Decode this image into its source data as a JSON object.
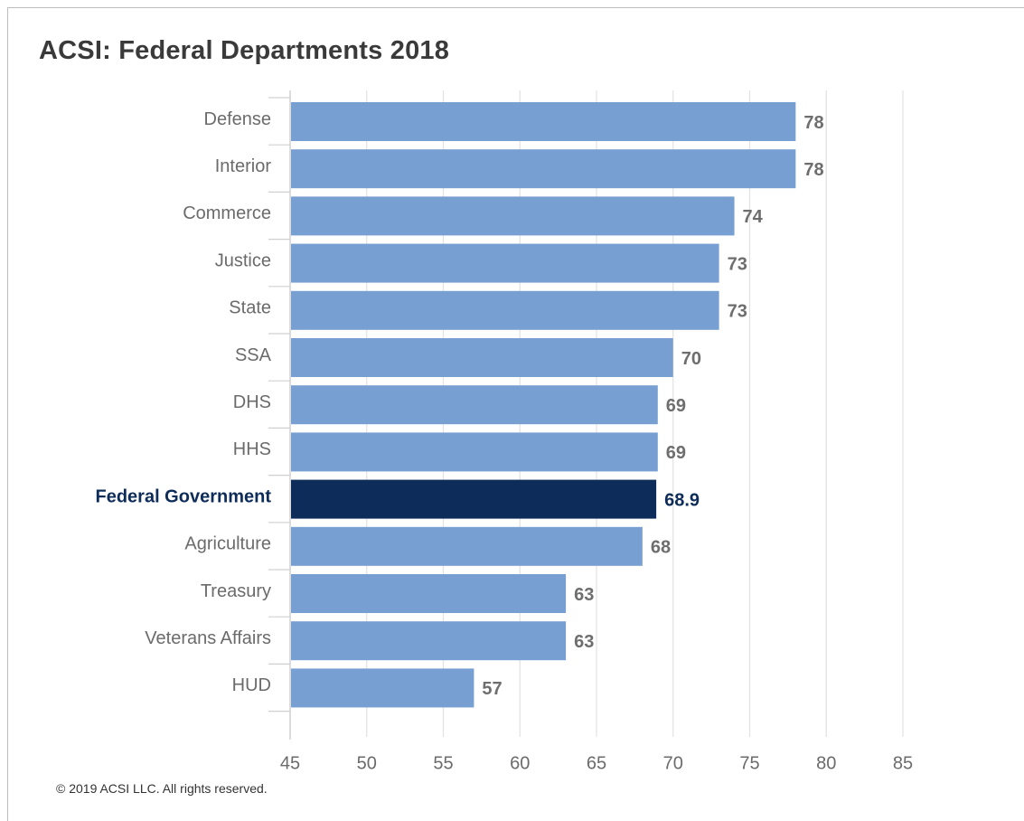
{
  "title": "ACSI: Federal Departments 2018",
  "footer": "© 2019 ACSI LLC. All rights reserved.",
  "colors": {
    "bar": "#789fd2",
    "highlight_bar": "#0d2c59",
    "label": "#6b6b6b",
    "value_label": "#6e6e6e",
    "highlight_label": "#0d2c59",
    "grid": "#e2e2e2",
    "axis": "#d0d0d0"
  },
  "chart_data": {
    "type": "bar",
    "orientation": "horizontal",
    "title": "ACSI: Federal Departments 2018",
    "categories": [
      "Defense",
      "Interior",
      "Commerce",
      "Justice",
      "State",
      "SSA",
      "DHS",
      "HHS",
      "Federal Government",
      "Agriculture",
      "Treasury",
      "Veterans Affairs",
      "HUD"
    ],
    "values": [
      78,
      78,
      74,
      73,
      73,
      70,
      69,
      69,
      68.9,
      68,
      63,
      63,
      57
    ],
    "value_labels": [
      "78",
      "78",
      "74",
      "73",
      "73",
      "70",
      "69",
      "69",
      "68.9",
      "68",
      "63",
      "63",
      "57"
    ],
    "highlight": "Federal Government",
    "xlim": [
      45,
      85
    ],
    "xticks": [
      "45",
      "50",
      "55",
      "60",
      "65",
      "70",
      "75",
      "80",
      "85"
    ],
    "grid": true,
    "legend": "none"
  }
}
